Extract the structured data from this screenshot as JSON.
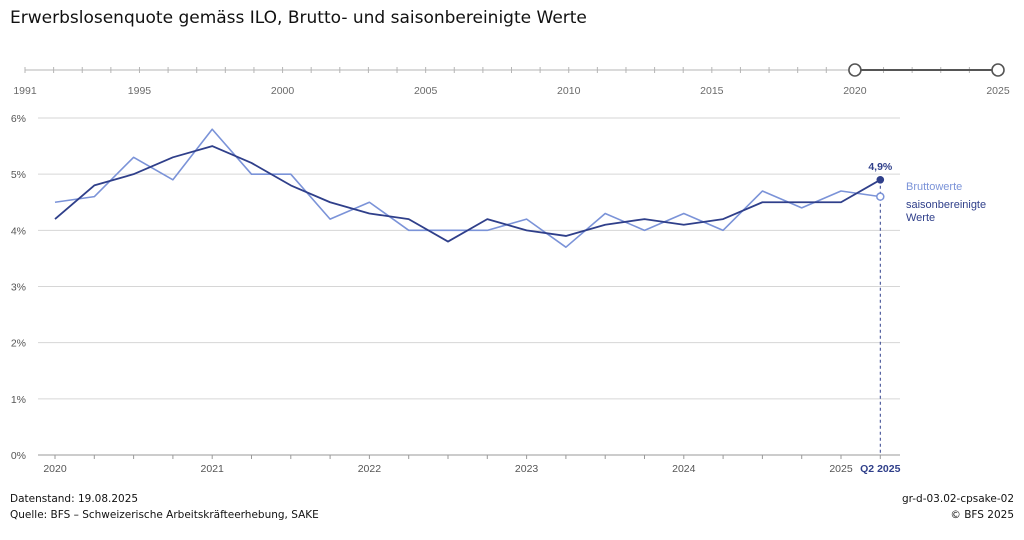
{
  "title": "Erwerbslosenquote gemäss ILO, Brutto- und saisonbereinigte Werte",
  "range_slider": {
    "ticks": [
      1991,
      1995,
      2000,
      2005,
      2010,
      2015,
      2020,
      2025
    ],
    "start_label": "2020",
    "end_label": "2025"
  },
  "chart_data": {
    "type": "line",
    "ylim": [
      0,
      6
    ],
    "y_ticks": [
      "0%",
      "1%",
      "2%",
      "3%",
      "4%",
      "5%",
      "6%"
    ],
    "x_tick_labels": [
      "2020",
      "2021",
      "2022",
      "2023",
      "2024",
      "2025"
    ],
    "categories": [
      "Q1 2020",
      "Q2 2020",
      "Q3 2020",
      "Q4 2020",
      "Q1 2021",
      "Q2 2021",
      "Q3 2021",
      "Q4 2021",
      "Q1 2022",
      "Q2 2022",
      "Q3 2022",
      "Q4 2022",
      "Q1 2023",
      "Q2 2023",
      "Q3 2023",
      "Q4 2023",
      "Q1 2024",
      "Q2 2024",
      "Q3 2024",
      "Q4 2024",
      "Q1 2025",
      "Q2 2025"
    ],
    "series": [
      {
        "name": "Bruttowerte",
        "color": "#7b93d8",
        "values": [
          4.5,
          4.6,
          5.3,
          4.9,
          5.8,
          5.0,
          5.0,
          4.2,
          4.5,
          4.0,
          4.0,
          4.0,
          4.2,
          3.7,
          4.3,
          4.0,
          4.3,
          4.0,
          4.7,
          4.4,
          4.7,
          4.6
        ]
      },
      {
        "name": "saisonbereinigte Werte",
        "color": "#2f3f8a",
        "values": [
          4.2,
          4.8,
          5.0,
          5.3,
          5.5,
          5.2,
          4.8,
          4.5,
          4.3,
          4.2,
          3.8,
          4.2,
          4.0,
          3.9,
          4.1,
          4.2,
          4.1,
          4.2,
          4.5,
          4.5,
          4.5,
          4.9
        ]
      }
    ],
    "highlight": {
      "value_label": "4,9%",
      "period_label": "Q2 2025"
    },
    "grid": true,
    "legend": "right"
  },
  "legend": {
    "brutto": "Bruttowerte",
    "saison_line1": "saisonbereinigte",
    "saison_line2": "Werte"
  },
  "footer": {
    "datenstand": "Datenstand: 19.08.2025",
    "quelle": "Quelle: BFS – Schweizerische Arbeitskräfteerhebung, SAKE",
    "code": "gr-d-03.02-cpsake-02",
    "copyright": "© BFS 2025"
  }
}
